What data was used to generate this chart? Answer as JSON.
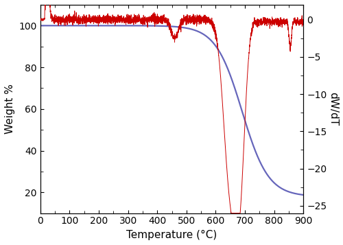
{
  "tga_color": "#6666bb",
  "dtga_color": "#cc0000",
  "xlabel": "Temperature (°C)",
  "ylabel_left": "Weight %",
  "ylabel_right": "dW/dT",
  "xlim": [
    0,
    900
  ],
  "ylim_left": [
    10,
    110
  ],
  "ylim_right": [
    -26,
    2
  ],
  "xticks": [
    0,
    100,
    200,
    300,
    400,
    500,
    600,
    700,
    800,
    900
  ],
  "yticks_left": [
    20,
    40,
    60,
    80,
    100
  ],
  "yticks_right": [
    0,
    -5,
    -10,
    -15,
    -20,
    -25
  ],
  "background_color": "#ffffff",
  "figsize": [
    5.0,
    3.57
  ],
  "dpi": 100
}
